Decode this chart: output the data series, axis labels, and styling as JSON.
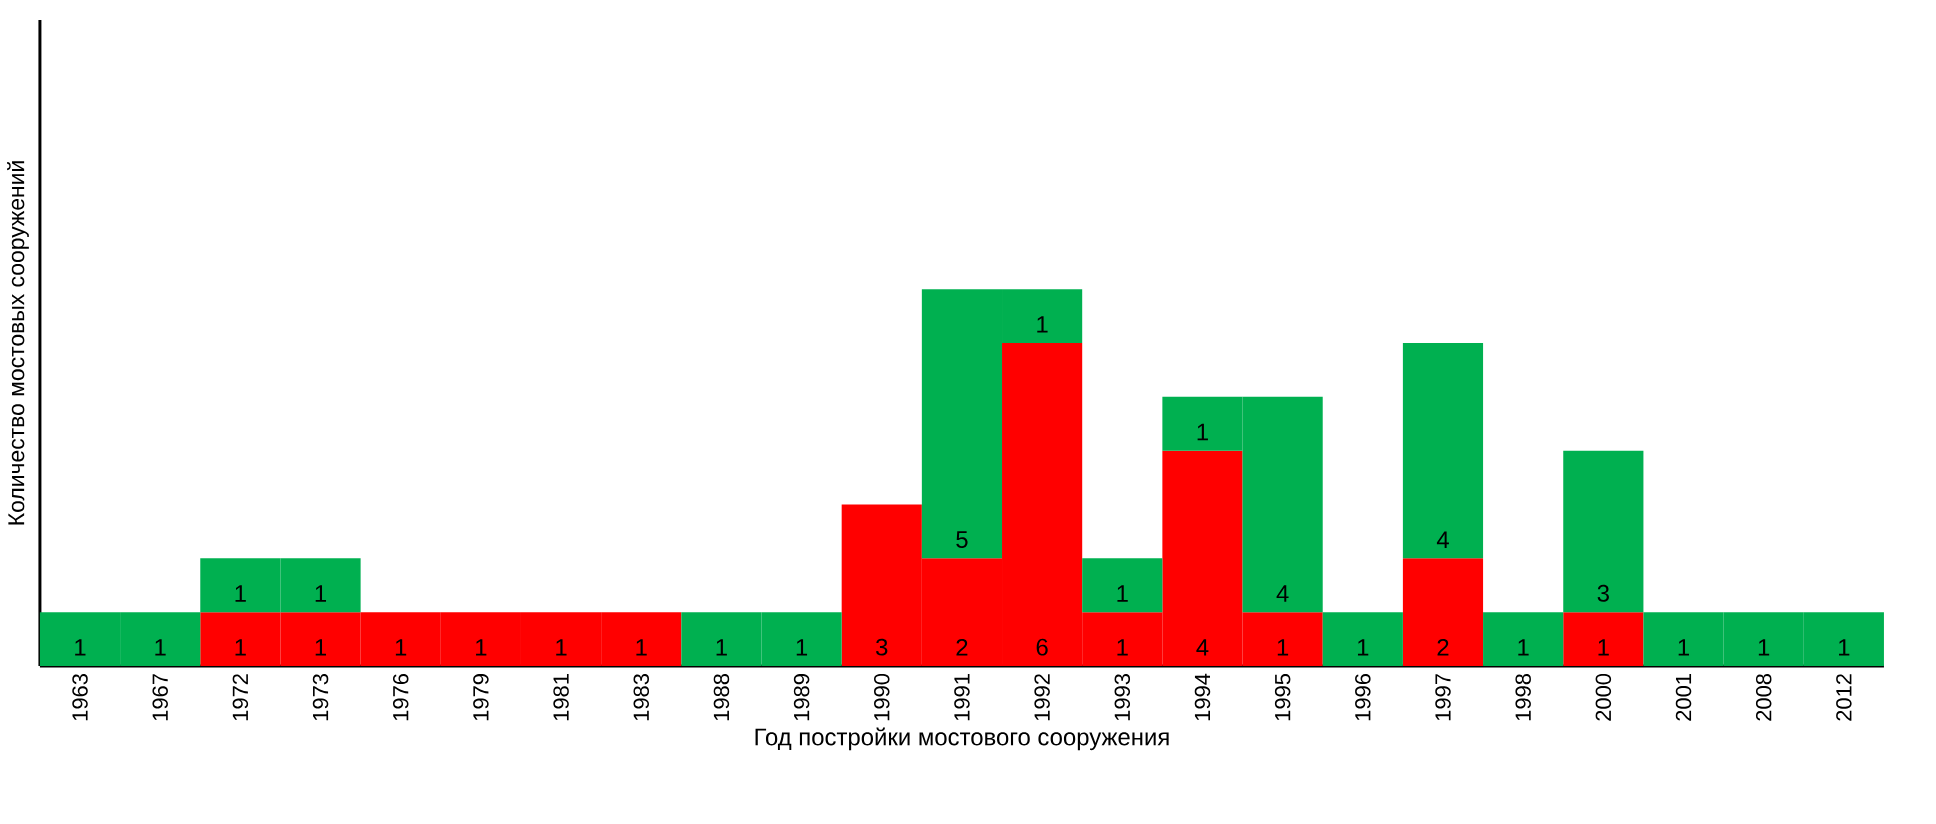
{
  "chart_data": {
    "type": "bar",
    "stacked": true,
    "data_labels": true,
    "tick_labels": "x",
    "xlabel": "Год постройки мостового сооружения",
    "ylabel": "Количество мостовых сооружений",
    "categories": [
      "1963",
      "1967",
      "1972",
      "1973",
      "1976",
      "1979",
      "1981",
      "1983",
      "1988",
      "1989",
      "1990",
      "1991",
      "1992",
      "1993",
      "1994",
      "1995",
      "1996",
      "1997",
      "1998",
      "2000",
      "2001",
      "2008",
      "2012"
    ],
    "ylim": [
      0,
      12
    ],
    "series": [
      {
        "color": "#ff0000",
        "values": [
          null,
          null,
          1,
          1,
          1,
          1,
          1,
          1,
          null,
          null,
          3,
          2,
          6,
          1,
          4,
          1,
          null,
          2,
          null,
          1,
          null,
          null,
          null
        ]
      },
      {
        "color": "#00b050",
        "values": [
          1,
          1,
          1,
          1,
          null,
          null,
          null,
          null,
          1,
          1,
          null,
          5,
          1,
          1,
          1,
          4,
          1,
          4,
          1,
          3,
          1,
          1,
          1
        ]
      }
    ]
  }
}
